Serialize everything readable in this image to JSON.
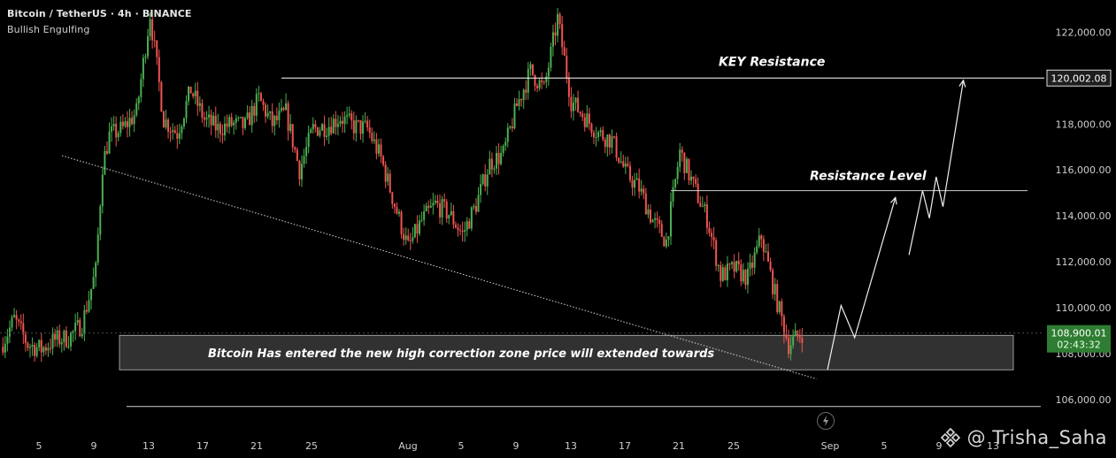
{
  "header": {
    "title": "Bitcoin / TetherUS · 4h · BINANCE",
    "pattern": "Bullish Engulfing"
  },
  "watermark": {
    "handle": "@ Trisha_Saha",
    "logo_icon": "binance-logo-icon"
  },
  "colors": {
    "background": "#000000",
    "up": "#4caf50",
    "down": "#ef5350",
    "level_line": "#ffffff",
    "zone_fill": "#3a3a3a",
    "axis_text": "#cfcfcf",
    "tag_bg": "#2a2a2a",
    "price_tag_bg": "#2e7d32"
  },
  "chart_data": {
    "type": "candlestick",
    "title": "Bitcoin / TetherUS · 4h · BINANCE",
    "symbol": "BTCUSDT",
    "timeframe": "4h",
    "exchange": "BINANCE",
    "x_tick_labels": [
      "5",
      "9",
      "13",
      "17",
      "21",
      "25",
      "Aug",
      "5",
      "9",
      "13",
      "17",
      "21",
      "25",
      "Sep",
      "5",
      "9",
      "13"
    ],
    "y_tick_labels": [
      "122,000.00",
      "120,000.00",
      "118,000.00",
      "116,000.00",
      "114,000.00",
      "112,000.00",
      "110,000.00",
      "108,000.00",
      "106,000.00"
    ],
    "ylim": [
      105500,
      123400
    ],
    "xlim_days": [
      "Jul 3",
      "Sep 15"
    ],
    "grid": false,
    "close_path": [
      [
        "Jul 3",
        108300
      ],
      [
        "Jul 4",
        109500
      ],
      [
        "Jul 5",
        108400
      ],
      [
        "Jul 6",
        108200
      ],
      [
        "Jul 7",
        108600
      ],
      [
        "Jul 8",
        108700
      ],
      [
        "Jul 9",
        109300
      ],
      [
        "Jul 10",
        111600
      ],
      [
        "Jul 10 12h",
        116200
      ],
      [
        "Jul 11",
        117500
      ],
      [
        "Jul 12",
        117800
      ],
      [
        "Jul 13",
        118500
      ],
      [
        "Jul 14",
        122800
      ],
      [
        "Jul 15",
        118200
      ],
      [
        "Jul 16",
        117600
      ],
      [
        "Jul 17",
        119500
      ],
      [
        "Jul 18",
        118200
      ],
      [
        "Jul 19",
        117800
      ],
      [
        "Jul 20",
        118000
      ],
      [
        "Jul 21",
        117900
      ],
      [
        "Jul 22",
        119100
      ],
      [
        "Jul 23",
        118000
      ],
      [
        "Jul 24",
        118500
      ],
      [
        "Jul 25",
        116000
      ],
      [
        "Jul 26",
        117800
      ],
      [
        "Jul 27",
        117900
      ],
      [
        "Jul 28",
        118300
      ],
      [
        "Jul 29",
        117900
      ],
      [
        "Jul 30",
        117800
      ],
      [
        "Jul 31",
        116500
      ],
      [
        "Aug 1",
        114500
      ],
      [
        "Aug 2",
        112600
      ],
      [
        "Aug 3",
        113800
      ],
      [
        "Aug 4",
        114500
      ],
      [
        "Aug 5",
        114100
      ],
      [
        "Aug 6",
        113200
      ],
      [
        "Aug 7",
        114500
      ],
      [
        "Aug 8",
        116300
      ],
      [
        "Aug 9",
        116700
      ],
      [
        "Aug 10",
        118800
      ],
      [
        "Aug 11",
        120300
      ],
      [
        "Aug 12",
        119500
      ],
      [
        "Aug 13",
        122600
      ],
      [
        "Aug 14",
        119000
      ],
      [
        "Aug 15",
        118300
      ],
      [
        "Aug 16",
        117600
      ],
      [
        "Aug 17",
        117300
      ],
      [
        "Aug 18",
        115900
      ],
      [
        "Aug 19",
        115200
      ],
      [
        "Aug 20",
        113800
      ],
      [
        "Aug 21",
        112900
      ],
      [
        "Aug 22",
        116800
      ],
      [
        "Aug 23",
        115300
      ],
      [
        "Aug 24",
        113900
      ],
      [
        "Aug 25",
        111400
      ],
      [
        "Aug 26",
        111700
      ],
      [
        "Aug 27",
        111300
      ],
      [
        "Aug 28",
        113100
      ],
      [
        "Aug 29",
        110600
      ],
      [
        "Aug 30",
        108400
      ],
      [
        "Aug 31",
        108900
      ]
    ],
    "horizontal_levels": [
      {
        "label": "KEY Resistance",
        "price": 120002.08
      },
      {
        "label": "Resistance Level",
        "price": 115100
      },
      {
        "label": "",
        "price": 105700
      }
    ],
    "zone": {
      "label": "Bitcoin Has entered the new high correction zone price will extended towards",
      "price_low": 107300,
      "price_high": 108800
    },
    "trendline": {
      "from": [
        "Jul 10",
        116600
      ],
      "to": [
        "Aug 31",
        106900
      ]
    },
    "projection_path": [
      [
        "Sep 1",
        107300
      ],
      [
        "Sep 2",
        110100
      ],
      [
        "Sep 3",
        108700
      ],
      [
        "Sep 6",
        114800
      ],
      [
        "Sep 7",
        112300
      ],
      [
        "Sep 8",
        115100
      ],
      [
        "Sep 8 12h",
        113900
      ],
      [
        "Sep 9",
        115700
      ],
      [
        "Sep 9 12h",
        114400
      ],
      [
        "Sep 11",
        119900
      ]
    ],
    "price_tags": [
      {
        "text": "120,002.08",
        "kind": "level"
      },
      {
        "text": "108,900.01",
        "kind": "last"
      },
      {
        "text": "02:43:32",
        "kind": "countdown"
      }
    ]
  }
}
